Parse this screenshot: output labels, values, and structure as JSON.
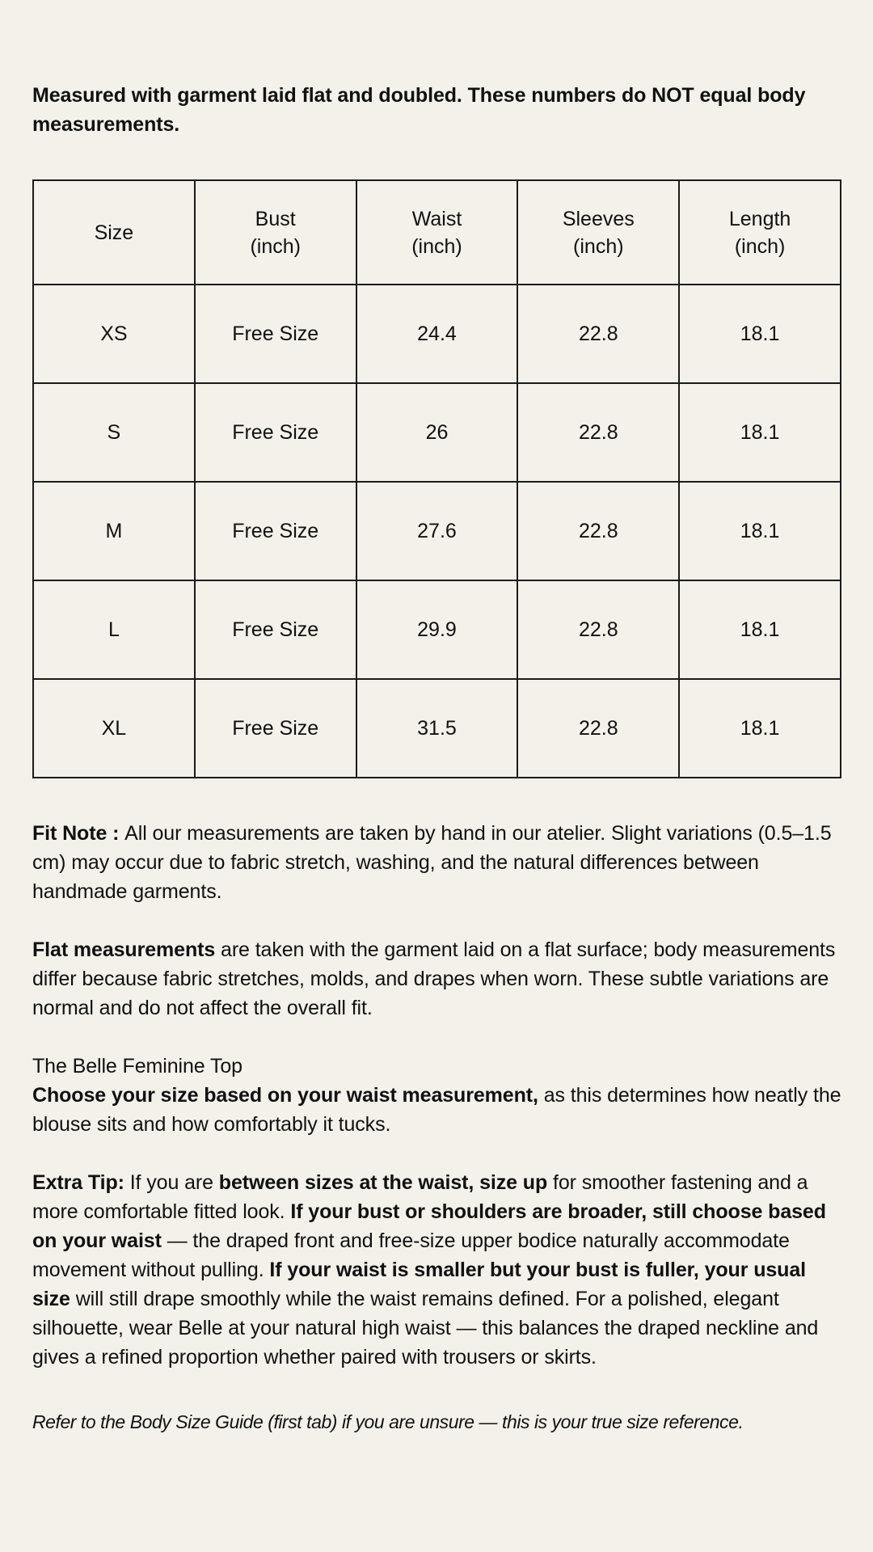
{
  "page": {
    "background_color": "#F4F1EA",
    "text_color": "#111111",
    "table_border_color": "#1A1A1A"
  },
  "intro": {
    "segments": [
      {
        "t": "Measured with garment laid flat and doubled. These numbers do NOT equal body measurements.",
        "b": true
      }
    ]
  },
  "size_table": {
    "columns": [
      {
        "label": "Size",
        "unit": ""
      },
      {
        "label": "Bust",
        "unit": "(inch)"
      },
      {
        "label": "Waist",
        "unit": "(inch)"
      },
      {
        "label": "Sleeves",
        "unit": "(inch)"
      },
      {
        "label": "Length",
        "unit": "(inch)"
      }
    ],
    "rows": [
      [
        "XS",
        "Free Size",
        "24.4",
        "22.8",
        "18.1"
      ],
      [
        "S",
        "Free Size",
        "26",
        "22.8",
        "18.1"
      ],
      [
        "M",
        "Free Size",
        "27.6",
        "22.8",
        "18.1"
      ],
      [
        "L",
        "Free Size",
        "29.9",
        "22.8",
        "18.1"
      ],
      [
        "XL",
        "Free Size",
        "31.5",
        "22.8",
        "18.1"
      ]
    ]
  },
  "paragraphs": {
    "fit_note": {
      "segments": [
        {
          "t": "Fit Note : ",
          "b": true
        },
        {
          "t": "All our measurements are taken by hand in our atelier. Slight variations (0.5–1.5 cm) may occur due to fabric stretch, washing, and the natural differences between handmade garments."
        }
      ]
    },
    "flat_measurements": {
      "segments": [
        {
          "t": "Flat measurements",
          "b": true
        },
        {
          "t": " are taken with the garment laid on a flat surface; body measurements differ because fabric stretches, molds, and drapes when worn. These subtle variations are normal and do not affect the overall fit."
        }
      ]
    },
    "belle_top": {
      "segments": [
        {
          "t": "The Belle Feminine Top"
        },
        {
          "br": true
        },
        {
          "t": "Choose your size based on your waist measurement,",
          "b": true
        },
        {
          "t": " as this determines how neatly the blouse sits and how comfortably it tucks."
        }
      ]
    },
    "extra_tip": {
      "segments": [
        {
          "t": "Extra Tip:",
          "b": true
        },
        {
          "t": " If you are "
        },
        {
          "t": "between sizes at the waist, size up",
          "b": true
        },
        {
          "t": " for smoother fastening and a more comfortable fitted look. "
        },
        {
          "t": "If your bust or shoulders are broader, still choose based on your waist",
          "b": true
        },
        {
          "t": " — the draped front and free-size upper bodice naturally accommodate movement without pulling. "
        },
        {
          "t": "If your waist is smaller but your bust is fuller, your usual size",
          "b": true
        },
        {
          "t": " will still drape smoothly while the waist remains defined. For a polished, elegant silhouette, wear Belle at your natural high waist — this balances the draped neckline and gives a refined proportion whether paired with trousers or skirts."
        }
      ]
    },
    "footnote": {
      "segments": [
        {
          "t": "Refer to the Body Size Guide (first tab) if you are unsure — this is your true size reference.",
          "i": true
        }
      ]
    }
  }
}
